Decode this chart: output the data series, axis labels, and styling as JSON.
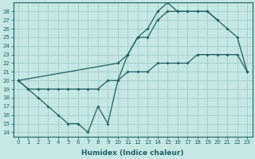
{
  "xlabel": "Humidex (Indice chaleur)",
  "bg_color": "#c5e8e5",
  "grid_color": "#a5ceca",
  "line_color": "#1e6060",
  "xlim": [
    -0.5,
    23.5
  ],
  "ylim": [
    13.5,
    29.0
  ],
  "xticks": [
    0,
    1,
    2,
    3,
    4,
    5,
    6,
    7,
    8,
    9,
    10,
    11,
    12,
    13,
    14,
    15,
    16,
    17,
    18,
    19,
    20,
    21,
    22,
    23
  ],
  "yticks": [
    14,
    15,
    16,
    17,
    18,
    19,
    20,
    21,
    22,
    23,
    24,
    25,
    26,
    27,
    28
  ],
  "lines": [
    {
      "x": [
        0,
        1,
        2,
        3,
        4,
        5,
        6,
        7,
        8,
        9,
        10,
        11,
        12,
        13,
        14,
        15,
        16,
        17,
        18,
        19,
        20
      ],
      "y": [
        20,
        19,
        18,
        17,
        16,
        15,
        15,
        14,
        17,
        15,
        20,
        23,
        25,
        25,
        27,
        28,
        28,
        28,
        28,
        28,
        27
      ]
    },
    {
      "x": [
        0,
        1,
        2,
        3,
        4,
        5,
        6,
        7,
        8,
        9,
        10,
        11,
        12,
        13,
        14,
        15,
        16,
        17,
        18,
        19,
        20,
        21,
        22,
        23
      ],
      "y": [
        20,
        19,
        19,
        19,
        19,
        19,
        19,
        19,
        19,
        20,
        20,
        21,
        21,
        21,
        22,
        22,
        22,
        22,
        23,
        23,
        23,
        23,
        23,
        21
      ]
    },
    {
      "x": [
        0,
        10,
        11,
        12,
        13,
        14,
        15,
        16,
        17,
        18,
        19,
        20,
        21,
        22,
        23
      ],
      "y": [
        20,
        22,
        23,
        25,
        26,
        28,
        29,
        28,
        28,
        28,
        28,
        27,
        26,
        25,
        21
      ]
    }
  ]
}
